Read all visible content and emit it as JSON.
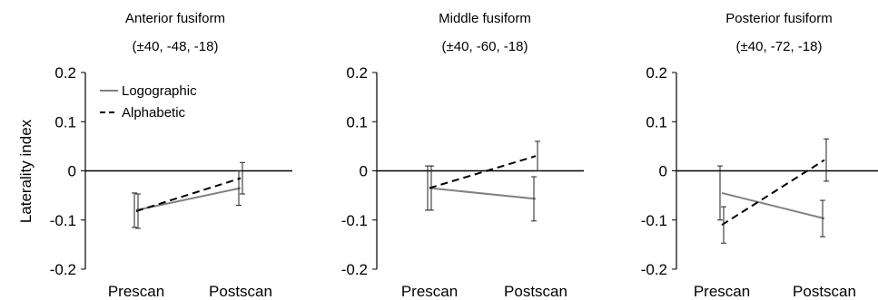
{
  "figure": {
    "ylabel": "Laterality index",
    "legend": [
      {
        "label": "Logographic",
        "style": "solid",
        "color": "#808080"
      },
      {
        "label": "Alphabetic",
        "style": "dashed",
        "color": "#000000"
      }
    ],
    "yticks": [
      "0.2",
      "0.1",
      "0",
      "-0.1",
      "-0.2"
    ]
  },
  "chart_data": [
    {
      "type": "line",
      "title": "Anterior fusiform",
      "subtitle": "(±40, -48, -18)",
      "categories": [
        "Prescan",
        "Postscan"
      ],
      "ylim": [
        -0.2,
        0.2
      ],
      "ylabel": "Laterality index",
      "legend_position": "top-left",
      "series": [
        {
          "name": "Logographic",
          "values": [
            -0.08,
            -0.035
          ],
          "error": [
            0.035,
            0.035
          ]
        },
        {
          "name": "Alphabetic",
          "values": [
            -0.082,
            -0.015
          ],
          "error": [
            0.035,
            0.032
          ]
        }
      ]
    },
    {
      "type": "line",
      "title": "Middle fusiform",
      "subtitle": "(±40, -60, -18)",
      "categories": [
        "Prescan",
        "Postscan"
      ],
      "ylim": [
        -0.2,
        0.2
      ],
      "series": [
        {
          "name": "Logographic",
          "values": [
            -0.035,
            -0.057
          ],
          "error": [
            0.045,
            0.045
          ]
        },
        {
          "name": "Alphabetic",
          "values": [
            -0.035,
            0.03
          ],
          "error": [
            0.045,
            0.03
          ]
        }
      ]
    },
    {
      "type": "line",
      "title": "Posterior fusiform",
      "subtitle": "(±40, -72, -18)",
      "categories": [
        "Prescan",
        "Postscan"
      ],
      "ylim": [
        -0.2,
        0.2
      ],
      "series": [
        {
          "name": "Logographic",
          "values": [
            -0.045,
            -0.097
          ],
          "error": [
            0.055,
            0.037
          ]
        },
        {
          "name": "Alphabetic",
          "values": [
            -0.11,
            0.022
          ],
          "error": [
            0.037,
            0.043
          ]
        }
      ]
    }
  ]
}
